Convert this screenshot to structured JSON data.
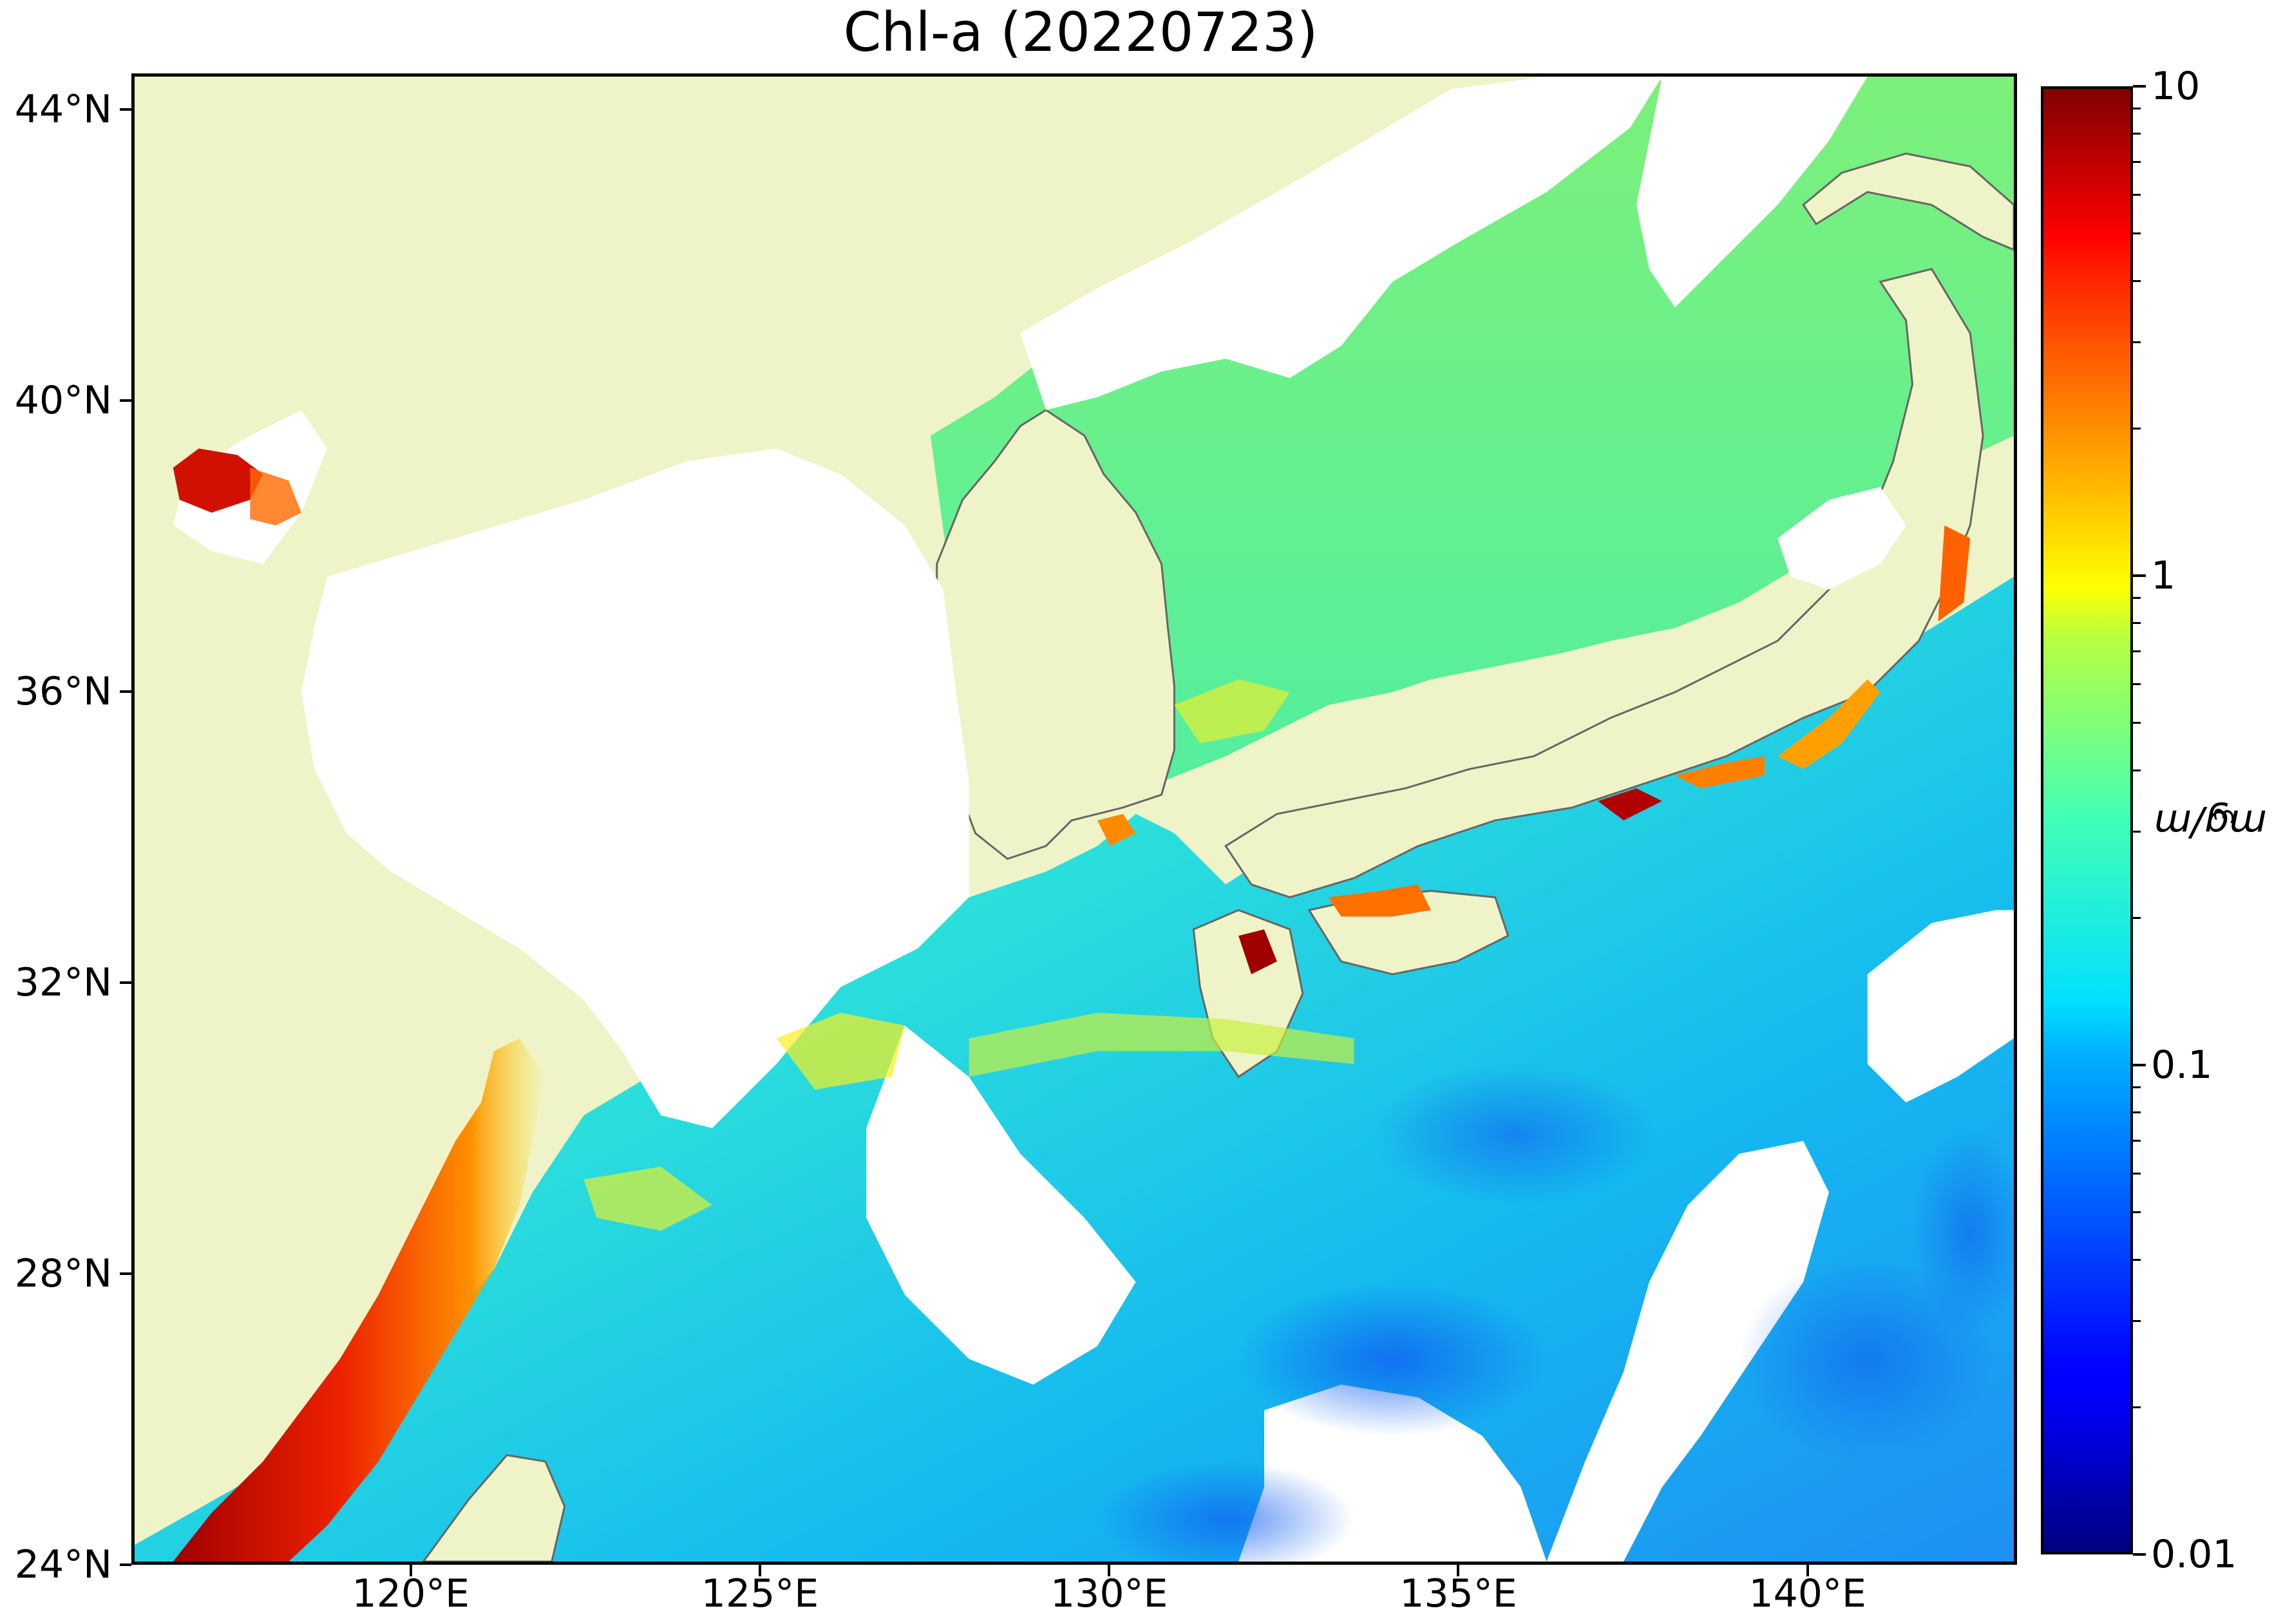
{
  "title": "Chl-a (20220723)",
  "map": {
    "lon_range": [
      116.0,
      143.0
    ],
    "lat_range": [
      24.0,
      44.5
    ],
    "lat_ticks": [
      {
        "value": 44,
        "label": "44°N"
      },
      {
        "value": 40,
        "label": "40°N"
      },
      {
        "value": 36,
        "label": "36°N"
      },
      {
        "value": 32,
        "label": "32°N"
      },
      {
        "value": 28,
        "label": "28°N"
      },
      {
        "value": 24,
        "label": "24°N"
      }
    ],
    "lon_ticks": [
      {
        "value": 120,
        "label": "120°E"
      },
      {
        "value": 125,
        "label": "125°E"
      },
      {
        "value": 130,
        "label": "130°E"
      },
      {
        "value": 135,
        "label": "135°E"
      },
      {
        "value": 140,
        "label": "140°E"
      }
    ],
    "colors": {
      "land": "#eff4c8",
      "coastline": "#666666",
      "no_data": "#ffffff"
    }
  },
  "colorbar": {
    "variable": "Chl-a",
    "unit_label": "mg/m",
    "unit_superscript": "3",
    "scale": "log",
    "min": 0.01,
    "max": 10,
    "colormap": "jet",
    "ticks": [
      {
        "value": 10,
        "label": "10"
      },
      {
        "value": 1,
        "label": "1"
      },
      {
        "value": 0.1,
        "label": "0.1"
      },
      {
        "value": 0.01,
        "label": "0.01"
      }
    ],
    "minor_ticks": [
      0.02,
      0.03,
      0.04,
      0.05,
      0.06,
      0.07,
      0.08,
      0.09,
      0.2,
      0.3,
      0.4,
      0.5,
      0.6,
      0.7,
      0.8,
      0.9,
      2,
      3,
      4,
      5,
      6,
      7,
      8,
      9
    ]
  }
}
